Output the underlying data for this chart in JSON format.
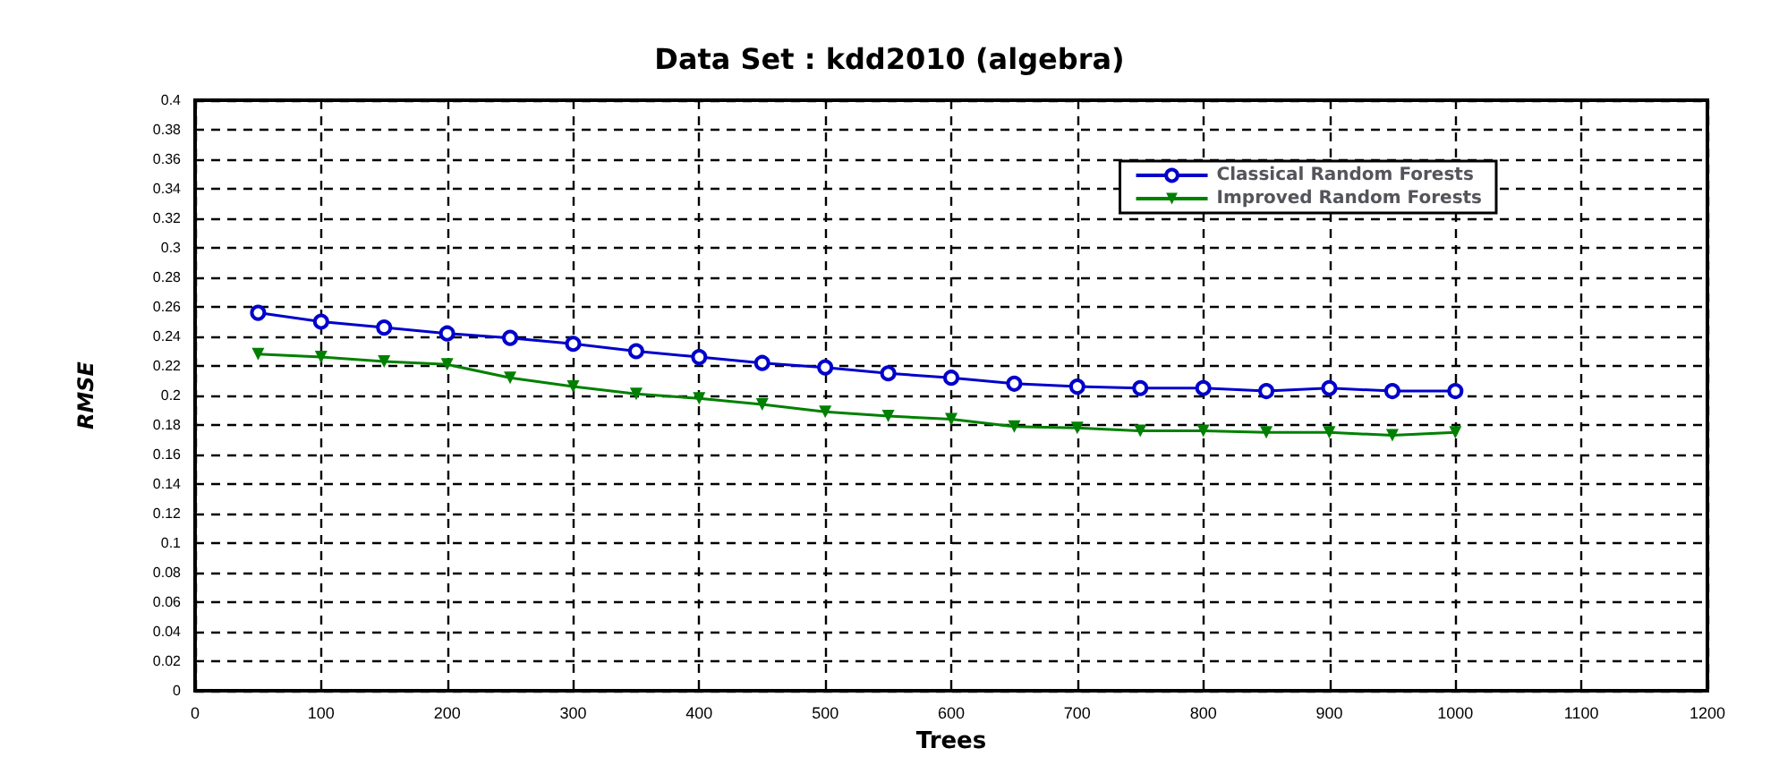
{
  "chart_data": {
    "type": "line",
    "title": "Data Set : kdd2010 (algebra)",
    "xlabel": "Trees",
    "ylabel": "RMSE",
    "x": [
      50,
      100,
      150,
      200,
      250,
      300,
      350,
      400,
      450,
      500,
      550,
      600,
      650,
      700,
      750,
      800,
      850,
      900,
      950,
      1000
    ],
    "series": [
      {
        "name": "Classical Random Forests",
        "color": "#0000cc",
        "marker": "circle",
        "values": [
          0.256,
          0.25,
          0.246,
          0.242,
          0.239,
          0.235,
          0.23,
          0.226,
          0.222,
          0.219,
          0.215,
          0.212,
          0.208,
          0.206,
          0.205,
          0.205,
          0.203,
          0.205,
          0.203,
          0.203
        ]
      },
      {
        "name": "Improved Random Forests",
        "color": "#008000",
        "marker": "triangle",
        "values": [
          0.228,
          0.226,
          0.223,
          0.221,
          0.212,
          0.206,
          0.201,
          0.198,
          0.194,
          0.189,
          0.186,
          0.184,
          0.179,
          0.178,
          0.176,
          0.176,
          0.175,
          0.175,
          0.173,
          0.175
        ]
      }
    ],
    "xlim": [
      0,
      1200
    ],
    "xticks": [
      0,
      100,
      200,
      300,
      400,
      500,
      600,
      700,
      800,
      900,
      1000,
      1100,
      1200
    ],
    "ylim": [
      0,
      0.4
    ],
    "yticks": [
      0,
      0.02,
      0.04,
      0.06,
      0.08,
      0.1,
      0.12,
      0.14,
      0.16,
      0.18,
      0.2,
      0.22,
      0.24,
      0.26,
      0.28,
      0.3,
      0.32,
      0.34,
      0.36,
      0.38,
      0.4
    ],
    "grid": true,
    "legend": "top right",
    "line_style": "solid"
  }
}
